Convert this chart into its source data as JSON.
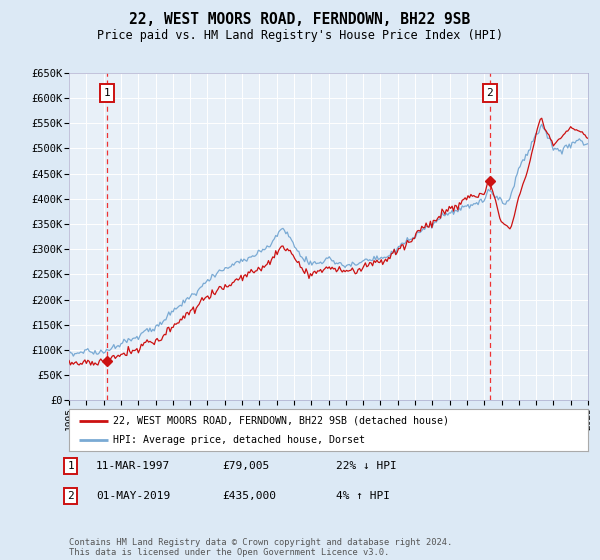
{
  "title": "22, WEST MOORS ROAD, FERNDOWN, BH22 9SB",
  "subtitle": "Price paid vs. HM Land Registry's House Price Index (HPI)",
  "bg_color": "#dce9f5",
  "plot_bg_color": "#e8f0f8",
  "grid_color": "#ffffff",
  "hpi_color": "#7aaad4",
  "price_color": "#cc1111",
  "vline_color": "#ee3333",
  "ylim": [
    0,
    650000
  ],
  "xlim": [
    1995,
    2025
  ],
  "sale1_year": 1997.19,
  "sale1_price": 79005,
  "sale1_label": "1",
  "sale1_date": "11-MAR-1997",
  "sale1_hpi_pct": "22% ↓ HPI",
  "sale2_year": 2019.33,
  "sale2_price": 435000,
  "sale2_label": "2",
  "sale2_date": "01-MAY-2019",
  "sale2_hpi_pct": "4% ↑ HPI",
  "legend_entry1": "22, WEST MOORS ROAD, FERNDOWN, BH22 9SB (detached house)",
  "legend_entry2": "HPI: Average price, detached house, Dorset",
  "footnote": "Contains HM Land Registry data © Crown copyright and database right 2024.\nThis data is licensed under the Open Government Licence v3.0.",
  "yticks": [
    0,
    50000,
    100000,
    150000,
    200000,
    250000,
    300000,
    350000,
    400000,
    450000,
    500000,
    550000,
    600000,
    650000
  ]
}
